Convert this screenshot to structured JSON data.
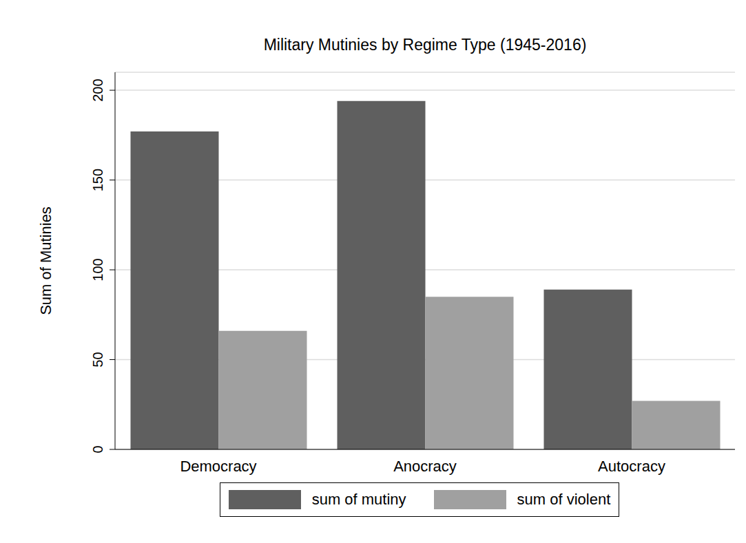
{
  "chart_data": {
    "type": "bar",
    "title": "Military Mutinies by Regime Type (1945-2016)",
    "y_label": "Sum of Mutinies",
    "categories": [
      "Democracy",
      "Anocracy",
      "Autocracy"
    ],
    "series": [
      {
        "name": "sum of mutiny",
        "color": "#5f5f5f",
        "values": [
          177,
          194,
          89
        ]
      },
      {
        "name": "sum of violent",
        "color": "#a0a0a0",
        "values": [
          66,
          85,
          27
        ]
      }
    ],
    "ylim": [
      0,
      210
    ],
    "yticks": [
      0,
      50,
      100,
      150,
      200
    ],
    "grid": true,
    "legend": "bottom"
  }
}
